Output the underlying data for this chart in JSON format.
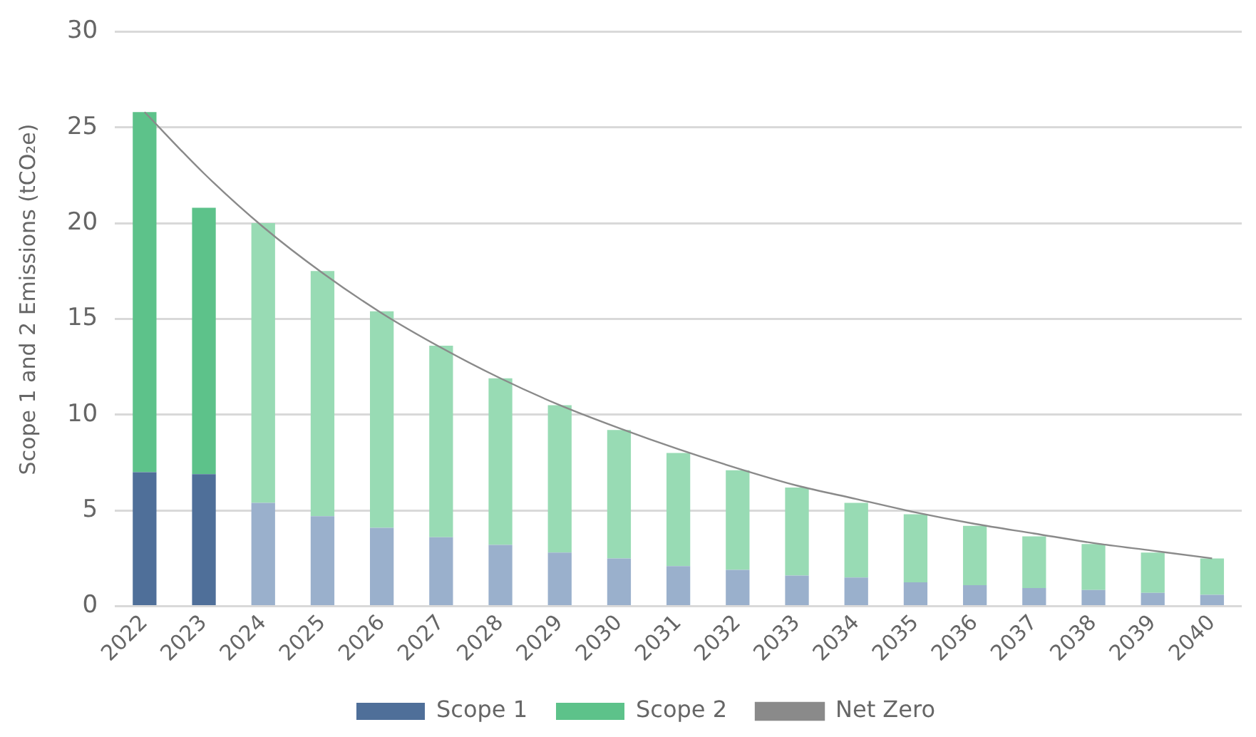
{
  "chart_data": {
    "type": "bar",
    "stacked": true,
    "ylabel": "Scope 1 and 2 Emissions (tCO₂e)",
    "categories": [
      "2022",
      "2023",
      "2024",
      "2025",
      "2026",
      "2027",
      "2028",
      "2029",
      "2030",
      "2031",
      "2032",
      "2033",
      "2034",
      "2035",
      "2036",
      "2037",
      "2038",
      "2039",
      "2040"
    ],
    "series": [
      {
        "name": "Scope 1",
        "color": "#4f6f99",
        "colors": [
          "#4f6f99",
          "#4f6f99",
          "#9ab0cc",
          "#9ab0cc",
          "#9ab0cc",
          "#9ab0cc",
          "#9ab0cc",
          "#9ab0cc",
          "#9ab0cc",
          "#9ab0cc",
          "#9ab0cc",
          "#9ab0cc",
          "#9ab0cc",
          "#9ab0cc",
          "#9ab0cc",
          "#9ab0cc",
          "#9ab0cc",
          "#9ab0cc",
          "#9ab0cc"
        ],
        "values": [
          7.0,
          6.9,
          5.4,
          4.7,
          4.1,
          3.6,
          3.2,
          2.8,
          2.5,
          2.1,
          1.9,
          1.6,
          1.5,
          1.25,
          1.1,
          0.95,
          0.85,
          0.7,
          0.6
        ]
      },
      {
        "name": "Scope 2",
        "color": "#5dc28a",
        "colors": [
          "#5dc28a",
          "#5dc28a",
          "#98dbb4",
          "#98dbb4",
          "#98dbb4",
          "#98dbb4",
          "#98dbb4",
          "#98dbb4",
          "#98dbb4",
          "#98dbb4",
          "#98dbb4",
          "#98dbb4",
          "#98dbb4",
          "#98dbb4",
          "#98dbb4",
          "#98dbb4",
          "#98dbb4",
          "#98dbb4",
          "#98dbb4"
        ],
        "values": [
          18.8,
          13.9,
          14.6,
          12.8,
          11.3,
          10.0,
          8.7,
          7.7,
          6.7,
          5.9,
          5.2,
          4.6,
          3.9,
          3.55,
          3.1,
          2.7,
          2.4,
          2.1,
          1.9
        ]
      },
      {
        "name": "Net Zero",
        "type": "line",
        "color": "#8a8a8a",
        "values": [
          25.8,
          22.6,
          19.8,
          17.4,
          15.3,
          13.5,
          11.9,
          10.5,
          9.3,
          8.2,
          7.2,
          6.3,
          5.6,
          4.9,
          4.3,
          3.8,
          3.3,
          2.9,
          2.5
        ]
      }
    ],
    "ylim": [
      0,
      30
    ],
    "yticks": [
      0,
      5,
      10,
      15,
      20,
      25,
      30
    ],
    "grid": "y",
    "legend": "bottom",
    "marker": "none",
    "line_style": "solid"
  }
}
